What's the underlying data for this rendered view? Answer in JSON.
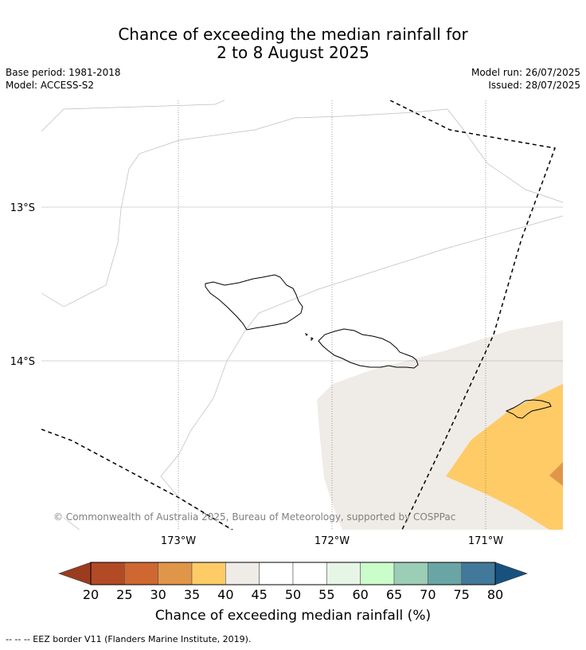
{
  "title": {
    "line1": "Chance of exceeding the median rainfall for",
    "line2": "2 to 8 August 2025"
  },
  "meta": {
    "base_period": "Base period: 1981-2018",
    "model": "Model: ACCESS-S2",
    "model_run": "Model run: 26/07/2025",
    "issued": "Issued: 28/07/2025"
  },
  "map": {
    "lat_labels": [
      "13°S",
      "14°S"
    ],
    "lon_labels": [
      "173°W",
      "172°W",
      "171°W"
    ],
    "copyright": "© Commonwealth of Australia 2025, Bureau of Meteorology, supported by COSPPac",
    "region_categories": [
      "40–45",
      "35–40",
      "30–35"
    ]
  },
  "colorbar": {
    "ticks": [
      "20",
      "25",
      "30",
      "35",
      "40",
      "45",
      "50",
      "55",
      "60",
      "65",
      "70",
      "75",
      "80"
    ],
    "colors": [
      "#b24a25",
      "#cf6731",
      "#e09648",
      "#fecb67",
      "#efebe6",
      "#ffffff",
      "#ffffff",
      "#e7f5e6",
      "#cbfdcb",
      "#9bcdb7",
      "#6aa5a6",
      "#42789a"
    ],
    "under_color": "#9a3c1f",
    "over_color": "#17527f",
    "label": "Chance of exceeding median rainfall (%)"
  },
  "footnote": "--  --  -- EEZ border V11 (Flanders Marine Institute, 2019).",
  "colors": {
    "light_region": "#efebe6",
    "orange_region": "#fecb67",
    "dark_orange_region": "#e09648"
  }
}
